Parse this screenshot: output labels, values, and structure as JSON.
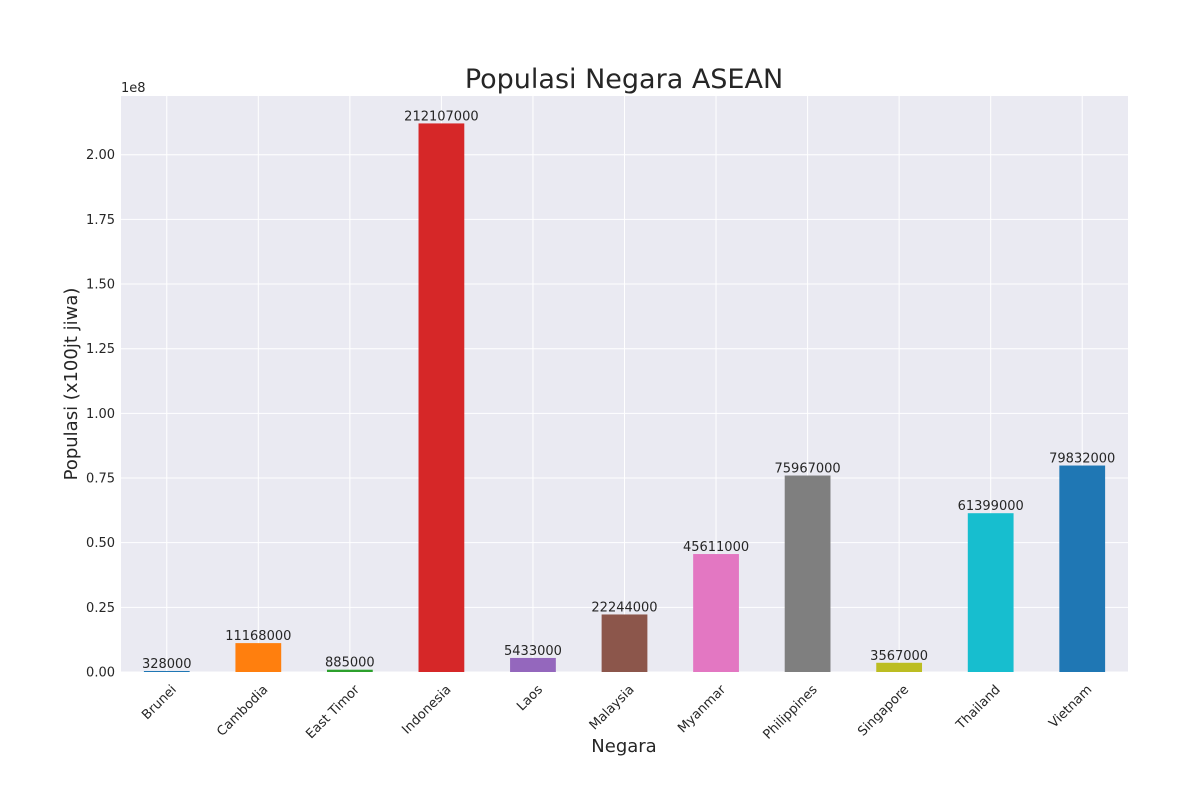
{
  "chart_data": {
    "type": "bar",
    "title": "Populasi Negara ASEAN",
    "xlabel": "Negara",
    "ylabel": "Populasi (x100jt jiwa)",
    "y_offset_text": "1e8",
    "ylim": [
      0,
      222712350
    ],
    "yticks": [
      0,
      25000000,
      50000000,
      75000000,
      100000000,
      125000000,
      150000000,
      175000000,
      200000000
    ],
    "ytick_labels": [
      "0.00",
      "0.25",
      "0.50",
      "0.75",
      "1.00",
      "1.25",
      "1.50",
      "1.75",
      "2.00"
    ],
    "grid": true,
    "categories": [
      "Brunei",
      "Cambodia",
      "East Timor",
      "Indonesia",
      "Laos",
      "Malaysia",
      "Myanmar",
      "Philippines",
      "Singapore",
      "Thailand",
      "Vietnam"
    ],
    "values": [
      328000,
      11168000,
      885000,
      212107000,
      5433000,
      22244000,
      45611000,
      75967000,
      3567000,
      61399000,
      79832000
    ],
    "value_labels": [
      "328000",
      "11168000",
      "885000",
      "212107000",
      "5433000",
      "22244000",
      "45611000",
      "75967000",
      "3567000",
      "61399000",
      "79832000"
    ],
    "colors": [
      "#1f77b4",
      "#ff7f0e",
      "#2ca02c",
      "#d62728",
      "#9467bd",
      "#8c564b",
      "#e377c2",
      "#7f7f7f",
      "#bcbd22",
      "#17becf",
      "#1f77b4"
    ],
    "plot_background": "#eaeaf2"
  }
}
